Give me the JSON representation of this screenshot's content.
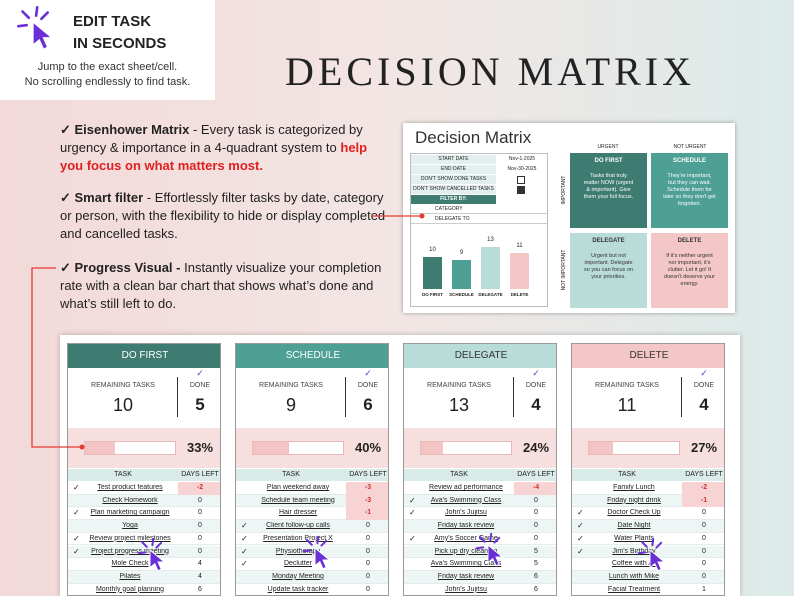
{
  "callout": {
    "title_lines": [
      "EDIT TASK",
      "IN SECONDS"
    ],
    "lines": [
      "Jump to the exact sheet/cell.",
      "No scrolling endlessly to find task."
    ]
  },
  "title": "DECISION MATRIX",
  "features": [
    {
      "heading": "✓ Eisenhower Matrix",
      "text": " - Every task is categorized by urgency & importance in a 4-quadrant system to ",
      "highlight": "help you focus on what matters most."
    },
    {
      "heading": "✓ Smart filter",
      "text": " - Effortlessly filter tasks by date, category or person, with the flexibility to hide or display completed and cancelled tasks."
    },
    {
      "heading": "✓ Progress Visual -",
      "text": " Instantly visualize your completion rate with a clean bar chart that shows what’s done and what’s still left to do."
    }
  ],
  "inset": {
    "title": "Decision Matrix",
    "filters": [
      {
        "label": "START DATE",
        "value": "Nov-1-2025"
      },
      {
        "label": "END DATE",
        "value": "Nov-30-2025"
      }
    ],
    "toggles": [
      {
        "label": "DON'T SHOW DONE TASKS",
        "checked": false
      },
      {
        "label": "DON'T SHOW CANCELLED TASKS",
        "checked": true
      }
    ],
    "filter_by": "FILTER BY:",
    "dropdowns": [
      "CATEGORY",
      "DELEGATE TO"
    ],
    "chart": {
      "type": "bar",
      "categories": [
        "DO FIRST",
        "SCHEDULE",
        "DELEGATE",
        "DELETE"
      ],
      "values": [
        10,
        9,
        13,
        11
      ],
      "colors": [
        "#3e7b70",
        "#4e9f94",
        "#b9dcd9",
        "#f4c7c7"
      ]
    },
    "axes": {
      "urgent": "URGENT",
      "not_urgent": "NOT URGENT",
      "important": "IMPORTANT",
      "not_important": "NOT IMPORTANT"
    },
    "quadrants": [
      {
        "name": "DO FIRST",
        "text": "Tasks that truly matter NOW (urgent & important). Give them your full focus.",
        "color": "#3e7b70",
        "text_color": "#ffffff"
      },
      {
        "name": "SCHEDULE",
        "text": "They're important, but they can wait. Schedule them for later so they don't get forgotten.",
        "color": "#4e9f94",
        "text_color": "#ffffff"
      },
      {
        "name": "DELEGATE",
        "text": "Urgent but not important. Delegate so you can focus on your priorities.",
        "color": "#b9dcd9",
        "text_color": "#333333"
      },
      {
        "name": "DELETE",
        "text": "If it's neither urgent nor important, it's clutter. Let it go! It doesn't deserve your energy.",
        "color": "#f4c7c7",
        "text_color": "#333333"
      }
    ]
  },
  "board": {
    "remaining_label": "REMAINING TASKS",
    "done_label": "DONE",
    "task_header": "TASK",
    "days_header": "DAYS LEFT",
    "check": "✓",
    "columns": [
      {
        "name": "DO FIRST",
        "color": "#3e7b70",
        "text_color": "#ffffff",
        "remaining": 10,
        "done": 5,
        "percent": 33,
        "percent_label": "33%",
        "rows": [
          {
            "done": true,
            "task": "Test product features",
            "days": -2
          },
          {
            "done": false,
            "task": "Check Homework",
            "days": 0
          },
          {
            "done": true,
            "task": "Plan marketing campaign",
            "days": 0
          },
          {
            "done": false,
            "task": "Yoga",
            "days": 0
          },
          {
            "done": true,
            "task": "Review project milestones",
            "days": 0
          },
          {
            "done": true,
            "task": "Project progress meeting",
            "days": 0
          },
          {
            "done": false,
            "task": "Mole Check",
            "days": 4
          },
          {
            "done": false,
            "task": "Pilates",
            "days": 4
          },
          {
            "done": false,
            "task": "Monthly goal planning",
            "days": 6
          }
        ]
      },
      {
        "name": "SCHEDULE",
        "color": "#4e9f94",
        "text_color": "#ffffff",
        "remaining": 9,
        "done": 6,
        "percent": 40,
        "percent_label": "40%",
        "rows": [
          {
            "done": false,
            "task": "Plan weekend away",
            "days": -3
          },
          {
            "done": false,
            "task": "Schedule team meeting",
            "days": -3
          },
          {
            "done": false,
            "task": "Hair dresser",
            "days": -1
          },
          {
            "done": true,
            "task": "Client follow-up calls",
            "days": 0
          },
          {
            "done": true,
            "task": "Presentation Project X",
            "days": 0
          },
          {
            "done": true,
            "task": "Physiotherapy",
            "days": 0
          },
          {
            "done": true,
            "task": "Declutter",
            "days": 0
          },
          {
            "done": false,
            "task": "Monday Meeting",
            "days": 0
          },
          {
            "done": false,
            "task": "Update task tracker",
            "days": 0
          }
        ]
      },
      {
        "name": "DELEGATE",
        "color": "#b9dcd9",
        "text_color": "#333333",
        "remaining": 13,
        "done": 4,
        "percent": 24,
        "percent_label": "24%",
        "rows": [
          {
            "done": false,
            "task": "Review ad performance",
            "days": -4
          },
          {
            "done": true,
            "task": "Ava's Swimming Class",
            "days": 0
          },
          {
            "done": true,
            "task": "John's Jujitsu",
            "days": 0
          },
          {
            "done": false,
            "task": "Friday task review",
            "days": 0
          },
          {
            "done": true,
            "task": "Amy's Soccer Game",
            "days": 0
          },
          {
            "done": false,
            "task": "Pick up dry cleaning",
            "days": 5
          },
          {
            "done": false,
            "task": "Ava's Swimming Class",
            "days": 5
          },
          {
            "done": false,
            "task": "Friday task review",
            "days": 6
          },
          {
            "done": false,
            "task": "John's Jujitsu",
            "days": 6
          }
        ]
      },
      {
        "name": "DELETE",
        "color": "#f4c7c7",
        "text_color": "#333333",
        "remaining": 11,
        "done": 4,
        "percent": 27,
        "percent_label": "27%",
        "rows": [
          {
            "done": false,
            "task": "Family Lunch",
            "days": -2
          },
          {
            "done": false,
            "task": "Friday night drink",
            "days": -1
          },
          {
            "done": true,
            "task": "Doctor Check Up",
            "days": 0
          },
          {
            "done": true,
            "task": "Date Night",
            "days": 0
          },
          {
            "done": true,
            "task": "Water Plants",
            "days": 0
          },
          {
            "done": true,
            "task": "Jim's Birthday",
            "days": 0
          },
          {
            "done": false,
            "task": "Coffee with Ali",
            "days": 0
          },
          {
            "done": false,
            "task": "Lunch with Mike",
            "days": 0
          },
          {
            "done": false,
            "task": "Facial Treatment",
            "days": 1
          }
        ]
      }
    ]
  }
}
